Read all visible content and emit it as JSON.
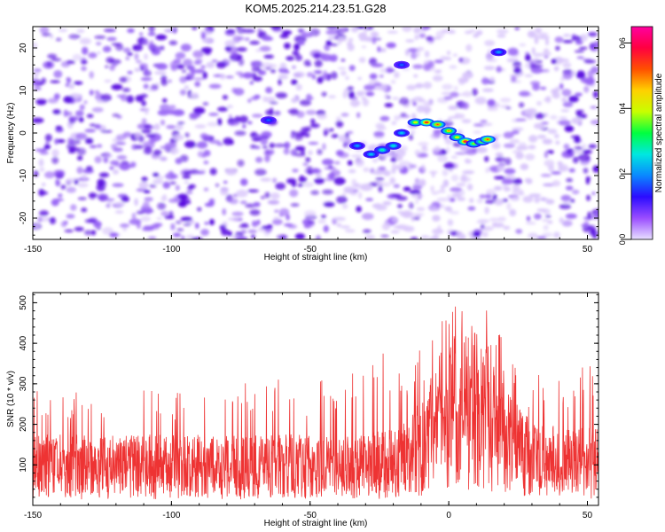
{
  "chart_data": [
    {
      "type": "heatmap",
      "title": "KOM5.2025.214.23.51.G28",
      "xlabel": "Height of straight line (km)",
      "ylabel": "Frequency (Hz)",
      "xlim": [
        -150,
        54
      ],
      "ylim": [
        -25,
        25
      ],
      "xticks": [
        "-150",
        "-100",
        "-50",
        "0",
        "50"
      ],
      "xtick_values": [
        -150,
        -100,
        -50,
        0,
        50
      ],
      "yticks": [
        "20",
        "10",
        "0",
        "-10",
        "-20"
      ],
      "ytick_values": [
        20,
        10,
        0,
        -10,
        -20
      ],
      "colorbar": {
        "label": "Normalized spectral amplitude",
        "range": [
          0,
          0.65
        ],
        "ticks": [
          "0.0",
          "0.2",
          "0.4",
          "0.6"
        ],
        "tick_values": [
          0.0,
          0.2,
          0.4,
          0.6
        ]
      },
      "features": [
        {
          "x": -33,
          "y": -3,
          "amplitude": 0.22
        },
        {
          "x": -28,
          "y": -5,
          "amplitude": 0.25
        },
        {
          "x": -24,
          "y": -4,
          "amplitude": 0.3
        },
        {
          "x": -20,
          "y": -3,
          "amplitude": 0.28
        },
        {
          "x": -17,
          "y": 0,
          "amplitude": 0.25
        },
        {
          "x": -12,
          "y": 2.5,
          "amplitude": 0.45
        },
        {
          "x": -8,
          "y": 2.5,
          "amplitude": 0.6
        },
        {
          "x": -4,
          "y": 2,
          "amplitude": 0.55
        },
        {
          "x": 0,
          "y": 0.5,
          "amplitude": 0.5
        },
        {
          "x": 3,
          "y": -1,
          "amplitude": 0.45
        },
        {
          "x": 6,
          "y": -2,
          "amplitude": 0.62
        },
        {
          "x": 9,
          "y": -2.5,
          "amplitude": 0.4
        },
        {
          "x": 12,
          "y": -2,
          "amplitude": 0.42
        },
        {
          "x": 14,
          "y": -1.5,
          "amplitude": 0.55
        },
        {
          "x": 18,
          "y": 19,
          "amplitude": 0.22
        },
        {
          "x": -17,
          "y": 16,
          "amplitude": 0.18
        },
        {
          "x": -65,
          "y": 3,
          "amplitude": 0.18
        }
      ],
      "colors": {
        "noise_dark": "#5a10e0",
        "noise_mid": "#9966f5",
        "noise_light": "#d9c6fb",
        "colormap": [
          "#e8e0ff",
          "#9a4dff",
          "#2b0cff",
          "#0a88ff",
          "#00e8e0",
          "#00ff40",
          "#c8ff00",
          "#ffd000",
          "#ff5000",
          "#ff0040",
          "#ff00a0"
        ]
      }
    },
    {
      "type": "line",
      "title": "",
      "xlabel": "Height of straight line (km)",
      "ylabel": "SNR (10 * v/v)",
      "xlim": [
        -150,
        54
      ],
      "ylim": [
        0,
        525
      ],
      "xticks": [
        "-150",
        "-100",
        "-50",
        "0",
        "50"
      ],
      "xtick_values": [
        -150,
        -100,
        -50,
        0,
        50
      ],
      "yticks": [
        "500",
        "400",
        "300",
        "200",
        "100"
      ],
      "ytick_values": [
        500,
        400,
        300,
        200,
        100
      ],
      "series": [
        {
          "color": "#ee3333",
          "envelope": {
            "x": [
              -150,
              -125,
              -100,
              -75,
              -50,
              -40,
              -30,
              -20,
              -15,
              -10,
              -5,
              0,
              5,
              10,
              15,
              20,
              25,
              30,
              40,
              54
            ],
            "baseline": [
              100,
              100,
              100,
              100,
              100,
              100,
              105,
              110,
              125,
              160,
              200,
              240,
              260,
              250,
              230,
              170,
              140,
              120,
              110,
              110
            ],
            "peak": [
              280,
              310,
              290,
              300,
              320,
              310,
              360,
              390,
              350,
              390,
              450,
              500,
              525,
              500,
              480,
              400,
              350,
              330,
              320,
              400
            ]
          }
        }
      ]
    }
  ]
}
